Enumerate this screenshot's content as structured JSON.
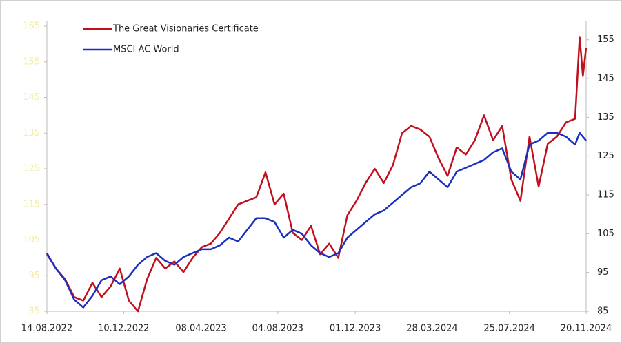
{
  "chart_data": {
    "type": "line",
    "x": [
      "14.08.2022",
      "28.08.2022",
      "11.09.2022",
      "25.09.2022",
      "09.10.2022",
      "23.10.2022",
      "06.11.2022",
      "20.11.2022",
      "04.12.2022",
      "18.12.2022",
      "01.01.2023",
      "15.01.2023",
      "29.01.2023",
      "12.02.2023",
      "26.02.2023",
      "12.03.2023",
      "26.03.2023",
      "09.04.2023",
      "23.04.2023",
      "07.05.2023",
      "21.05.2023",
      "04.06.2023",
      "18.06.2023",
      "02.07.2023",
      "16.07.2023",
      "30.07.2023",
      "13.08.2023",
      "27.08.2023",
      "10.09.2023",
      "24.09.2023",
      "08.10.2023",
      "22.10.2023",
      "05.11.2023",
      "19.11.2023",
      "03.12.2023",
      "17.12.2023",
      "31.12.2023",
      "14.01.2024",
      "28.01.2024",
      "11.02.2024",
      "25.02.2024",
      "10.03.2024",
      "24.03.2024",
      "07.04.2024",
      "21.04.2024",
      "05.05.2024",
      "19.05.2024",
      "02.06.2024",
      "16.06.2024",
      "30.06.2024",
      "14.07.2024",
      "28.07.2024",
      "11.08.2024",
      "25.08.2024",
      "08.09.2024",
      "22.09.2024",
      "06.10.2024",
      "20.10.2024",
      "03.11.2024",
      "10.11.2024",
      "15.11.2024",
      "20.11.2024"
    ],
    "series": [
      {
        "name": "The Great Visionaries Certificate",
        "color": "#c0101e",
        "axis": "y",
        "values": [
          101,
          97,
          94,
          89,
          88,
          93,
          89,
          92,
          97,
          88,
          85,
          94,
          100,
          97,
          99,
          96,
          100,
          103,
          104,
          107,
          111,
          115,
          116,
          117,
          124,
          115,
          118,
          107,
          105,
          109,
          101,
          104,
          100,
          112,
          116,
          121,
          125,
          121,
          126,
          135,
          137,
          136,
          134,
          128,
          123,
          131,
          129,
          133,
          140,
          133,
          137,
          122,
          116,
          134,
          120,
          132,
          134,
          138,
          139,
          162,
          151,
          159
        ]
      },
      {
        "name": "MSCI AC World",
        "color": "#1a2fc0",
        "axis": "y2",
        "values": [
          100,
          96,
          93,
          88,
          86,
          89,
          93,
          94,
          92,
          94,
          97,
          99,
          100,
          98,
          97,
          99,
          100,
          101,
          101,
          102,
          104,
          103,
          106,
          109,
          109,
          108,
          104,
          106,
          105,
          102,
          100,
          99,
          100,
          104,
          106,
          108,
          110,
          111,
          113,
          115,
          117,
          118,
          121,
          119,
          117,
          121,
          122,
          123,
          124,
          126,
          127,
          121,
          119,
          128,
          129,
          131,
          131,
          130,
          128,
          131,
          130,
          129
        ]
      }
    ],
    "xlim": [
      "14.08.2022",
      "20.11.2024"
    ],
    "xticks": [
      "14.08.2022",
      "10.12.2022",
      "08.04.2023",
      "04.08.2023",
      "01.12.2023",
      "28.03.2024",
      "25.07.2024",
      "20.11.2024"
    ],
    "ylim": [
      85,
      165
    ],
    "yticks": [
      85,
      95,
      105,
      115,
      125,
      135,
      145,
      155,
      165
    ],
    "y2lim": [
      85,
      158.5
    ],
    "y2ticks": [
      85,
      95,
      105,
      115,
      125,
      135,
      145,
      155
    ]
  }
}
